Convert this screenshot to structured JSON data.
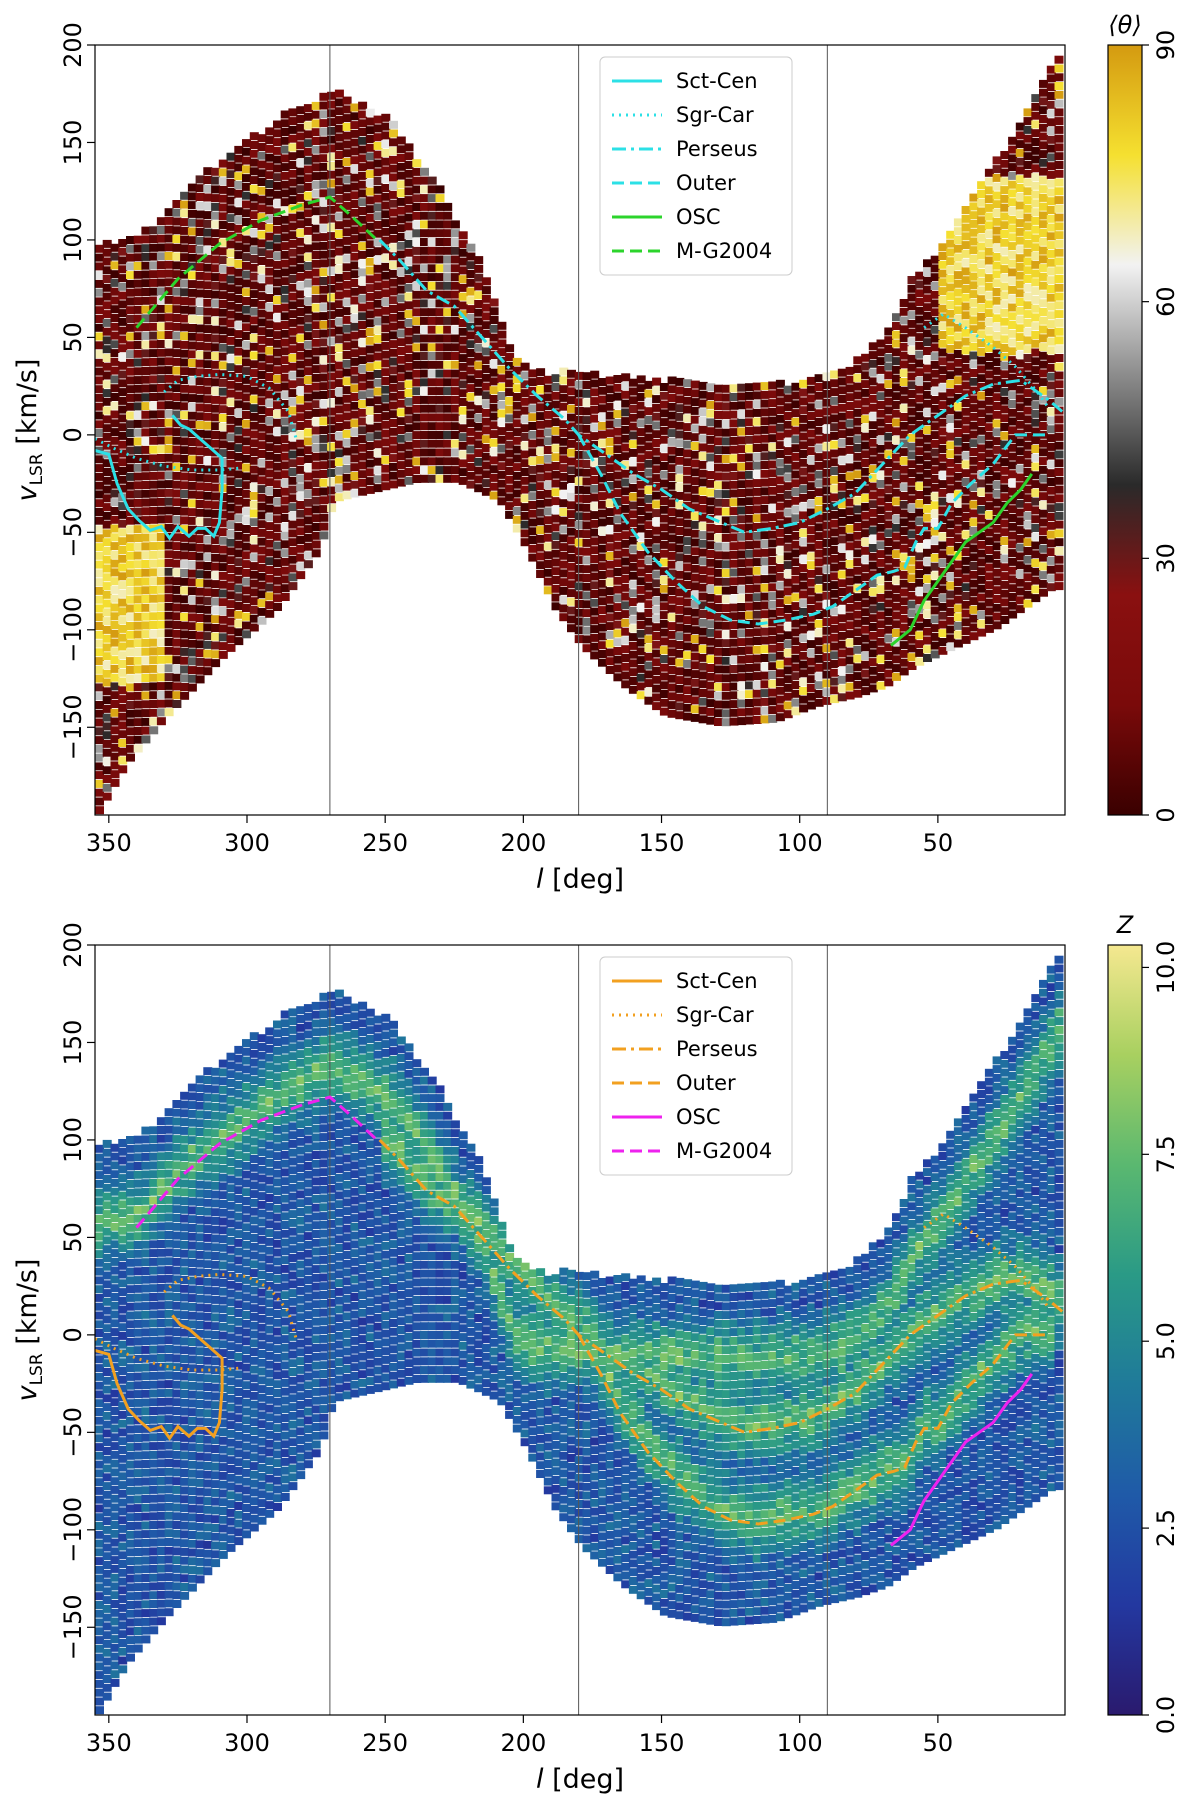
{
  "chart_data": [
    {
      "type": "heatmap",
      "panel": "top",
      "xlabel_italic": "l",
      "xlabel_rest": " [deg]",
      "ylabel_main": "v",
      "ylabel_sub": "LSR",
      "ylabel_rest": " [km/s]",
      "xlim": [
        355,
        4
      ],
      "ylim": [
        -195,
        200
      ],
      "x_ticks": [
        350,
        300,
        250,
        200,
        150,
        100,
        50
      ],
      "y_ticks": [
        200,
        150,
        100,
        50,
        0,
        -50,
        -100,
        -150
      ],
      "x_tick_labels": [
        "350",
        "300",
        "250",
        "200",
        "150",
        "100",
        "50"
      ],
      "y_tick_labels": [
        "200",
        "150",
        "100",
        "50",
        "0",
        "−50",
        "−100",
        "−150"
      ],
      "vertical_lines": [
        270,
        180,
        90
      ],
      "colorbar": {
        "label": "⟨θ⟩",
        "range": [
          0,
          90
        ],
        "ticks": [
          0,
          30,
          60,
          90
        ],
        "tick_labels": [
          "0",
          "30",
          "60",
          "90"
        ],
        "colors": [
          "#3a0000",
          "#7a0a0a",
          "#8a1010",
          "#2a2a2a",
          "#8c8c8c",
          "#f2f2f2",
          "#f5e030",
          "#d49a10"
        ]
      },
      "legend": {
        "position": "top-center",
        "entries": [
          {
            "label": "Sct-Cen",
            "style": "solid",
            "color": "#2ce0e6"
          },
          {
            "label": "Sgr-Car",
            "style": "dotted",
            "color": "#2ce0e6"
          },
          {
            "label": "Perseus",
            "style": "dashdot",
            "color": "#2ce0e6"
          },
          {
            "label": "Outer",
            "style": "dashed",
            "color": "#2ce0e6"
          },
          {
            "label": "OSC",
            "style": "solid",
            "color": "#2cd42c"
          },
          {
            "label": "M-G2004",
            "style": "dashed",
            "color": "#2cd42c"
          }
        ]
      }
    },
    {
      "type": "heatmap",
      "panel": "bottom",
      "xlabel_italic": "l",
      "xlabel_rest": " [deg]",
      "ylabel_main": "v",
      "ylabel_sub": "LSR",
      "ylabel_rest": " [km/s]",
      "xlim": [
        355,
        4
      ],
      "ylim": [
        -195,
        200
      ],
      "x_ticks": [
        350,
        300,
        250,
        200,
        150,
        100,
        50
      ],
      "y_ticks": [
        200,
        150,
        100,
        50,
        0,
        -50,
        -100,
        -150
      ],
      "x_tick_labels": [
        "350",
        "300",
        "250",
        "200",
        "150",
        "100",
        "50"
      ],
      "y_tick_labels": [
        "200",
        "150",
        "100",
        "50",
        "0",
        "−50",
        "−100",
        "−150"
      ],
      "vertical_lines": [
        270,
        180,
        90
      ],
      "colorbar": {
        "label": "Z",
        "range": [
          0,
          10.3
        ],
        "ticks": [
          0,
          2.5,
          5.0,
          7.5,
          10.0
        ],
        "tick_labels": [
          "0.0",
          "2.5",
          "5.0",
          "7.5",
          "10.0"
        ],
        "colors": [
          "#2a1a6e",
          "#2338a0",
          "#1f5aa8",
          "#1f7a9a",
          "#2a9a86",
          "#5ab870",
          "#a8d060",
          "#f5e890"
        ]
      },
      "legend": {
        "position": "top-center",
        "entries": [
          {
            "label": "Sct-Cen",
            "style": "solid",
            "color": "#f2a020"
          },
          {
            "label": "Sgr-Car",
            "style": "dotted",
            "color": "#f2a020"
          },
          {
            "label": "Perseus",
            "style": "dashdot",
            "color": "#f2a020"
          },
          {
            "label": "Outer",
            "style": "dashed",
            "color": "#f2a020"
          },
          {
            "label": "OSC",
            "style": "solid",
            "color": "#ee22ee"
          },
          {
            "label": "M-G2004",
            "style": "dashed",
            "color": "#ee22ee"
          }
        ]
      }
    }
  ],
  "arm_traces": {
    "sct_cen": [
      [
        355,
        -8
      ],
      [
        350,
        -10
      ],
      [
        347,
        -25
      ],
      [
        343,
        -38
      ],
      [
        339,
        -44
      ],
      [
        335,
        -49
      ],
      [
        331,
        -47
      ],
      [
        328,
        -53
      ],
      [
        325,
        -47
      ],
      [
        321,
        -52
      ],
      [
        318,
        -48
      ],
      [
        315,
        -48
      ],
      [
        312,
        -52
      ],
      [
        310,
        -45
      ],
      [
        309,
        -28
      ],
      [
        309,
        -12
      ],
      [
        313,
        -7
      ],
      [
        317,
        -2
      ],
      [
        321,
        3
      ],
      [
        324,
        5
      ],
      [
        327,
        10
      ]
    ],
    "sgr_car": [
      [
        355,
        -2
      ],
      [
        348,
        -7
      ],
      [
        340,
        -12
      ],
      [
        330,
        -16
      ],
      [
        320,
        -18
      ],
      [
        310,
        -18
      ],
      [
        302,
        -17
      ]
    ],
    "sgr_car_loop": [
      [
        330,
        22
      ],
      [
        325,
        28
      ],
      [
        318,
        30
      ],
      [
        310,
        31
      ],
      [
        300,
        30
      ],
      [
        292,
        24
      ],
      [
        285,
        12
      ],
      [
        282,
        -3
      ]
    ],
    "sgr_car_right": [
      [
        55,
        55
      ],
      [
        48,
        62
      ],
      [
        40,
        55
      ],
      [
        30,
        45
      ],
      [
        22,
        35
      ],
      [
        14,
        22
      ],
      [
        10,
        14
      ]
    ],
    "perseus": [
      [
        252,
        100
      ],
      [
        245,
        90
      ],
      [
        235,
        74
      ],
      [
        225,
        66
      ],
      [
        215,
        50
      ],
      [
        205,
        34
      ],
      [
        195,
        20
      ],
      [
        185,
        8
      ],
      [
        180,
        0
      ],
      [
        170,
        -10
      ],
      [
        160,
        -20
      ],
      [
        150,
        -28
      ],
      [
        140,
        -38
      ],
      [
        130,
        -44
      ],
      [
        120,
        -50
      ],
      [
        110,
        -48
      ],
      [
        100,
        -45
      ],
      [
        90,
        -38
      ],
      [
        80,
        -30
      ],
      [
        70,
        -15
      ],
      [
        60,
        0
      ],
      [
        50,
        10
      ],
      [
        40,
        20
      ],
      [
        30,
        26
      ],
      [
        20,
        28
      ],
      [
        10,
        18
      ],
      [
        5,
        12
      ]
    ],
    "outer": [
      [
        180,
        0
      ],
      [
        172,
        -20
      ],
      [
        165,
        -40
      ],
      [
        155,
        -60
      ],
      [
        145,
        -75
      ],
      [
        135,
        -88
      ],
      [
        125,
        -95
      ],
      [
        115,
        -97
      ],
      [
        105,
        -95
      ],
      [
        95,
        -92
      ],
      [
        88,
        -88
      ],
      [
        80,
        -80
      ],
      [
        72,
        -72
      ],
      [
        66,
        -70
      ],
      [
        62,
        -68
      ],
      [
        58,
        -55
      ],
      [
        55,
        -48
      ],
      [
        50,
        -48
      ],
      [
        45,
        -35
      ],
      [
        38,
        -25
      ],
      [
        30,
        -15
      ],
      [
        22,
        0
      ],
      [
        15,
        0
      ],
      [
        10,
        0
      ]
    ],
    "osc": [
      [
        67,
        -108
      ],
      [
        60,
        -100
      ],
      [
        55,
        -85
      ],
      [
        50,
        -75
      ],
      [
        45,
        -65
      ],
      [
        40,
        -55
      ],
      [
        35,
        -50
      ],
      [
        30,
        -45
      ],
      [
        25,
        -35
      ],
      [
        20,
        -28
      ],
      [
        16,
        -20
      ]
    ],
    "mg2004": [
      [
        340,
        55
      ],
      [
        325,
        80
      ],
      [
        310,
        98
      ],
      [
        295,
        110
      ],
      [
        280,
        118
      ],
      [
        270,
        122
      ],
      [
        262,
        112
      ],
      [
        253,
        100
      ]
    ]
  }
}
